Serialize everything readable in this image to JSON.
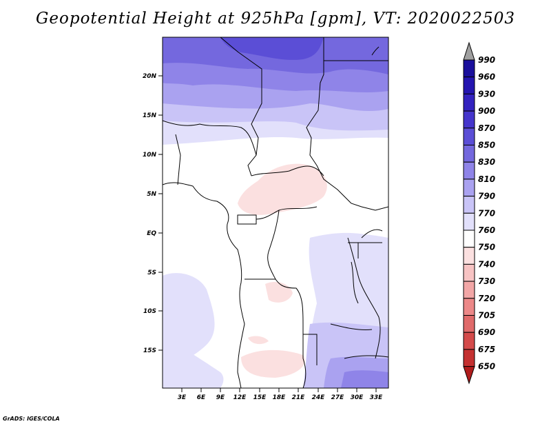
{
  "title": "Geopotential Height at 925hPa [gpm], VT: 2020022503",
  "credit": "GrADS: IGES/COLA",
  "map": {
    "lat_labels": [
      "20N",
      "15N",
      "10N",
      "5N",
      "EQ",
      "5S",
      "10S",
      "15S"
    ],
    "lon_labels": [
      "3E",
      "6E",
      "9E",
      "12E",
      "15E",
      "18E",
      "21E",
      "24E",
      "27E",
      "30E",
      "33E"
    ]
  },
  "colorbar": {
    "levels": [
      "990",
      "960",
      "930",
      "900",
      "870",
      "850",
      "830",
      "810",
      "790",
      "770",
      "760",
      "750",
      "740",
      "730",
      "720",
      "705",
      "690",
      "675",
      "650"
    ],
    "colors": [
      "#1a0f9c",
      "#2415b0",
      "#3322bf",
      "#4535cc",
      "#5b4ed6",
      "#7468de",
      "#8f84e8",
      "#aaa2f0",
      "#c9c4f7",
      "#e2e0fb",
      "#ffffff",
      "#fbe0e0",
      "#f7c3c3",
      "#f2a6a6",
      "#ec8888",
      "#e06a6a",
      "#d44b4b",
      "#c43131",
      "#b01c1c"
    ]
  }
}
